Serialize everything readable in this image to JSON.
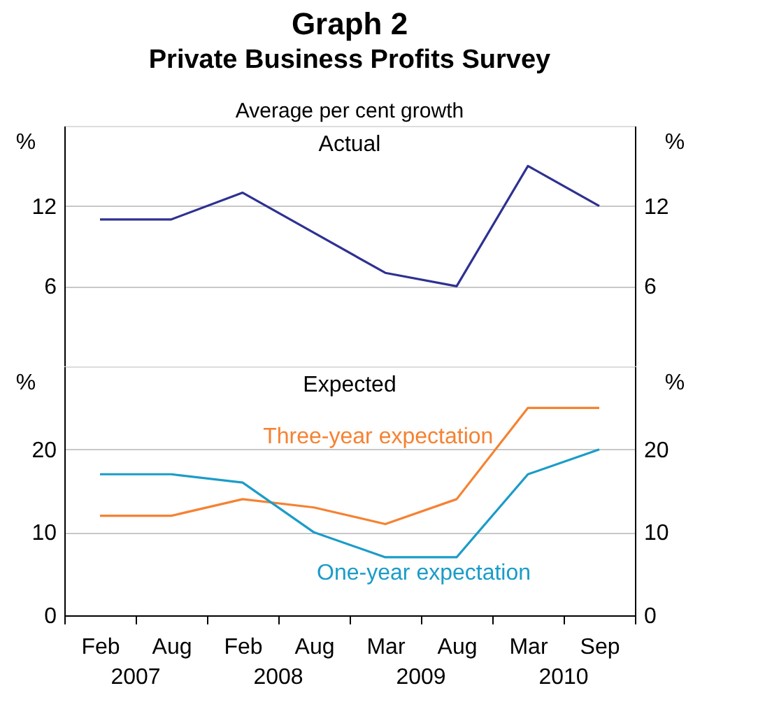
{
  "chart_data": [
    {
      "type": "line",
      "title": "Graph 2",
      "subtitle": "Private Business Profits Survey",
      "annotations": [
        "Average per cent growth",
        "Actual"
      ],
      "ylabel": "%",
      "y2label": "%",
      "categories": [
        null,
        null,
        null,
        null,
        null,
        null,
        null,
        null
      ],
      "series": [
        {
          "color": "#2e3192",
          "values": [
            11,
            11,
            13,
            10,
            7,
            6,
            15,
            12
          ]
        }
      ],
      "ylim": [
        0,
        18
      ],
      "yticks": [
        6,
        12
      ],
      "y2lim": [
        0,
        18
      ],
      "y2ticks": [
        6,
        12
      ],
      "grid": "y",
      "tick_labels": "y"
    },
    {
      "type": "line",
      "annotations": [
        "Expected",
        "2007",
        "2008",
        "2009",
        "2010"
      ],
      "ylabel": "%",
      "y2label": "%",
      "categories": [
        "Feb",
        "Aug",
        "Feb",
        "Aug",
        "Mar",
        "Aug",
        "Mar",
        "Sep"
      ],
      "series": [
        {
          "name": "Three-year expectation",
          "color": "#f58232",
          "values": [
            12,
            12,
            14,
            13,
            11,
            14,
            25,
            25
          ]
        },
        {
          "name": "One-year expectation",
          "color": "#1a9cc8",
          "values": [
            17,
            17,
            16,
            10,
            7,
            7,
            17,
            20
          ]
        }
      ],
      "ylim": [
        0,
        30
      ],
      "yticks": [
        0,
        10,
        20
      ],
      "y2lim": [
        0,
        30
      ],
      "y2ticks": [
        0,
        10,
        20
      ],
      "grid": "y"
    }
  ]
}
